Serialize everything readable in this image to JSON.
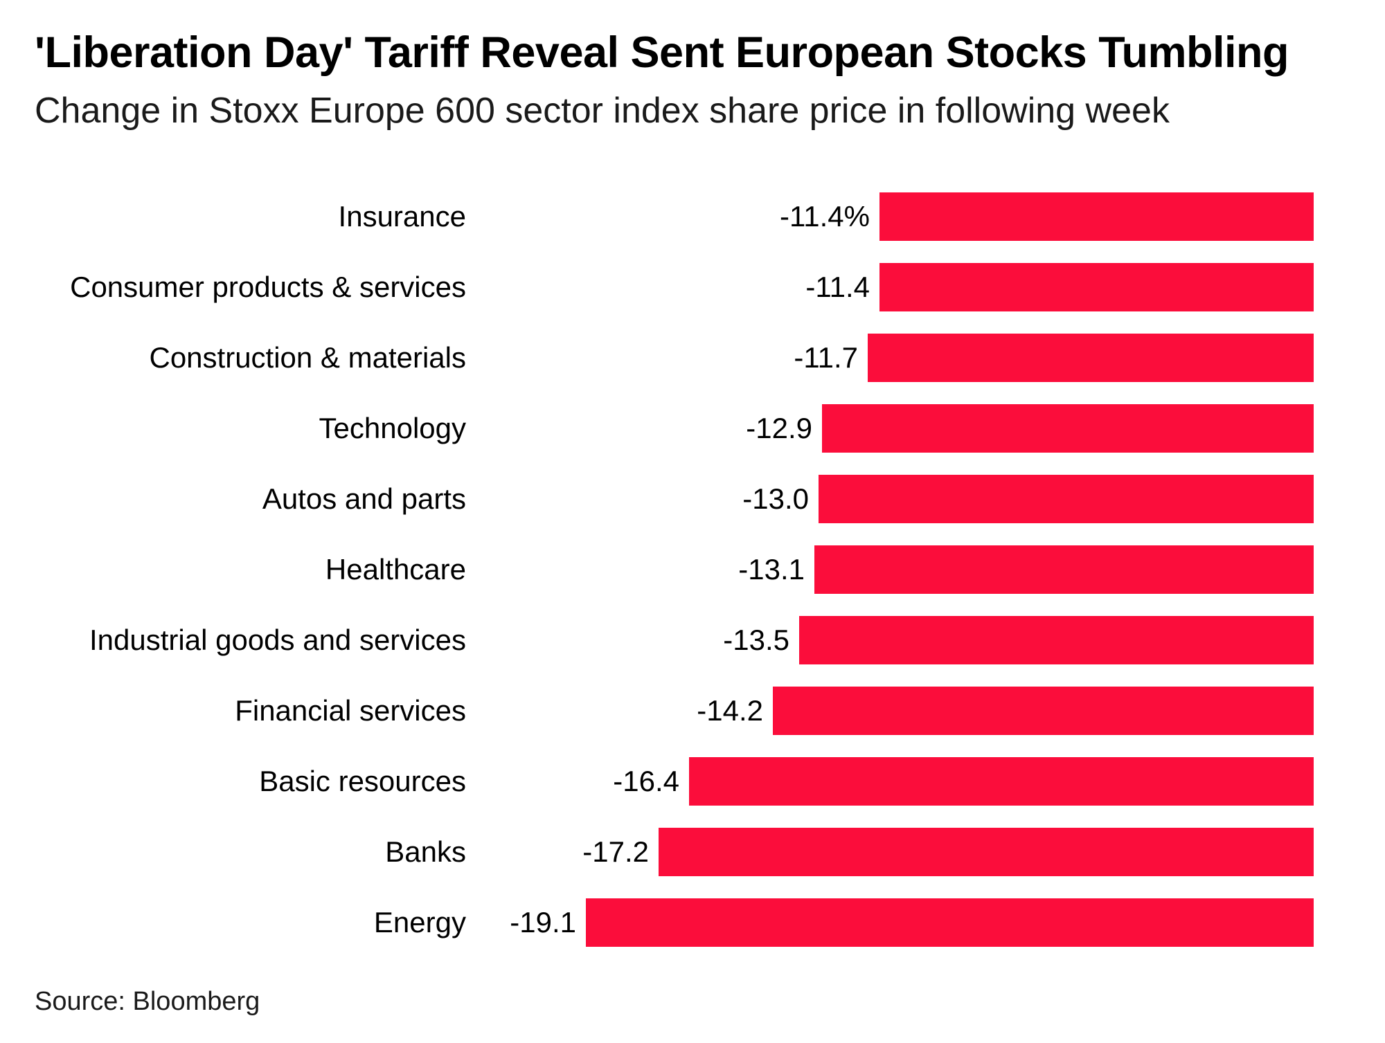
{
  "chart_data": {
    "type": "bar",
    "orientation": "horizontal",
    "title": "'Liberation Day' Tariff Reveal Sent European Stocks Tumbling",
    "subtitle": "Change in Stoxx Europe 600 sector index share price in following week",
    "categories": [
      "Insurance",
      "Consumer products & services",
      "Construction & materials",
      "Technology",
      "Autos and parts",
      "Healthcare",
      "Industrial goods and services",
      "Financial services",
      "Basic resources",
      "Banks",
      "Energy"
    ],
    "values": [
      -11.4,
      -11.4,
      -11.7,
      -12.9,
      -13.0,
      -13.1,
      -13.5,
      -14.2,
      -16.4,
      -17.2,
      -19.1
    ],
    "value_labels": [
      "-11.4%",
      "-11.4",
      "-11.7",
      "-12.9",
      "-13.0",
      "-13.1",
      "-13.5",
      "-14.2",
      "-16.4",
      "-17.2",
      "-19.1"
    ],
    "unit": "percent",
    "bar_color": "#fb0d3b",
    "axis": {
      "zero_position": "right",
      "grid": false,
      "axis_line": false,
      "value_labels_position": "left-of-bar"
    },
    "legend": null,
    "xlabel": "",
    "ylabel": ""
  },
  "footer": {
    "source": "Source: Bloomberg"
  }
}
